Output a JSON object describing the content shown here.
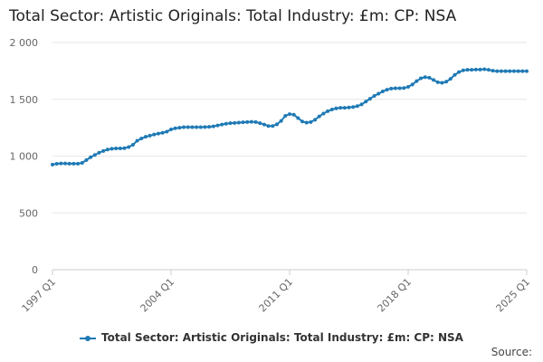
{
  "chart_data": {
    "type": "line",
    "title": "Total Sector: Artistic Originals: Total Industry: £m: CP: NSA",
    "series_name": "Total Sector: Artistic Originals: Total Industry: £m: CP: NSA",
    "x_range": [
      "1997 Q1",
      "2025 Q1"
    ],
    "x_ticks": [
      "1997 Q1",
      "2004 Q1",
      "2011 Q1",
      "2018 Q1",
      "2025 Q1"
    ],
    "y_ticks": [
      "0",
      "500",
      "1 000",
      "1 500",
      "2 000"
    ],
    "ylim": [
      0,
      2000
    ],
    "grid": "horizontal",
    "legend_position": "bottom",
    "source_label": "Source:",
    "color": "#1f7ab5",
    "values": [
      925,
      932,
      935,
      935,
      933,
      933,
      933,
      940,
      965,
      990,
      1010,
      1030,
      1045,
      1058,
      1065,
      1068,
      1068,
      1070,
      1080,
      1100,
      1135,
      1155,
      1170,
      1180,
      1190,
      1198,
      1205,
      1215,
      1235,
      1245,
      1250,
      1255,
      1255,
      1255,
      1255,
      1255,
      1256,
      1258,
      1262,
      1270,
      1278,
      1285,
      1290,
      1292,
      1295,
      1298,
      1300,
      1302,
      1300,
      1290,
      1278,
      1265,
      1265,
      1280,
      1310,
      1355,
      1370,
      1365,
      1335,
      1305,
      1295,
      1300,
      1320,
      1350,
      1375,
      1395,
      1410,
      1420,
      1425,
      1425,
      1428,
      1432,
      1440,
      1455,
      1480,
      1505,
      1530,
      1550,
      1570,
      1585,
      1595,
      1598,
      1598,
      1600,
      1610,
      1630,
      1660,
      1685,
      1695,
      1690,
      1670,
      1650,
      1645,
      1655,
      1680,
      1715,
      1740,
      1755,
      1760,
      1760,
      1762,
      1762,
      1765,
      1760,
      1752,
      1748,
      1748,
      1748,
      1748,
      1748,
      1748,
      1748,
      1748
    ]
  }
}
